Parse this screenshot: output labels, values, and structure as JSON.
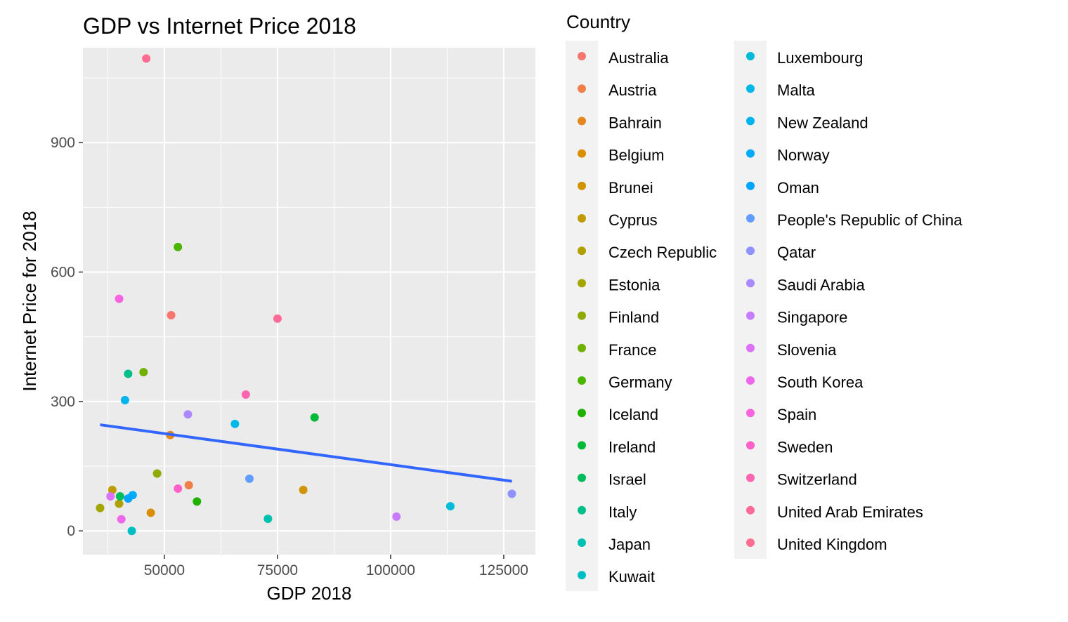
{
  "chart_data": {
    "type": "scatter",
    "title": "GDP vs Internet Price 2018",
    "xlabel": "GDP 2018",
    "ylabel": "Internet Price for 2018",
    "xlim": [
      32000,
      132000
    ],
    "ylim": [
      -55,
      1120
    ],
    "xticks": [
      50000,
      75000,
      100000,
      125000
    ],
    "xtick_labels": [
      "50000",
      "75000",
      "100000",
      "125000"
    ],
    "yticks": [
      0,
      300,
      600,
      900
    ],
    "ytick_labels": [
      "0",
      "300",
      "600",
      "900"
    ],
    "grid": true,
    "background": "#ebebeb",
    "legend_title": "Country",
    "legend_position": "right",
    "points": [
      {
        "country": "Australia",
        "x": 51500,
        "y": 500,
        "color": "#F8766D"
      },
      {
        "country": "Austria",
        "x": 55400,
        "y": 106,
        "color": "#EF7F49"
      },
      {
        "country": "Bahrain",
        "x": 51300,
        "y": 222,
        "color": "#E5861E"
      },
      {
        "country": "Belgium",
        "x": 47000,
        "y": 42,
        "color": "#DB8E00"
      },
      {
        "country": "Brunei",
        "x": 80700,
        "y": 95,
        "color": "#CF9400"
      },
      {
        "country": "Cyprus",
        "x": 38500,
        "y": 95,
        "color": "#C09B00"
      },
      {
        "country": "Czech Republic",
        "x": 40000,
        "y": 63,
        "color": "#B0A000"
      },
      {
        "country": "Estonia",
        "x": 35800,
        "y": 53,
        "color": "#A3A500"
      },
      {
        "country": "Finland",
        "x": 48400,
        "y": 133,
        "color": "#8FAA00"
      },
      {
        "country": "France",
        "x": 45400,
        "y": 368,
        "color": "#72B000"
      },
      {
        "country": "Germany",
        "x": 53000,
        "y": 658,
        "color": "#4BB600"
      },
      {
        "country": "Iceland",
        "x": 57200,
        "y": 68,
        "color": "#1EB100"
      },
      {
        "country": "Ireland",
        "x": 83200,
        "y": 263,
        "color": "#00BA38"
      },
      {
        "country": "Israel",
        "x": 40200,
        "y": 80,
        "color": "#00BC5B"
      },
      {
        "country": "Italy",
        "x": 42000,
        "y": 364,
        "color": "#00BF8B"
      },
      {
        "country": "Japan",
        "x": 72900,
        "y": 28,
        "color": "#00C0AF"
      },
      {
        "country": "Kuwait",
        "x": 42800,
        "y": 0,
        "color": "#00BFC4"
      },
      {
        "country": "Luxembourg",
        "x": 113200,
        "y": 57,
        "color": "#00BCD8"
      },
      {
        "country": "Malta",
        "x": 65600,
        "y": 248,
        "color": "#00B8E7"
      },
      {
        "country": "New Zealand",
        "x": 41300,
        "y": 303,
        "color": "#00B4EF"
      },
      {
        "country": "Norway",
        "x": 43000,
        "y": 83,
        "color": "#00ABF9"
      },
      {
        "country": "Oman",
        "x": 42000,
        "y": 75,
        "color": "#00A5FF"
      },
      {
        "country": "People's Republic of China",
        "x": 68800,
        "y": 121,
        "color": "#619CFF"
      },
      {
        "country": "Qatar",
        "x": 126800,
        "y": 86,
        "color": "#8F91FF"
      },
      {
        "country": "Saudi Arabia",
        "x": 55200,
        "y": 270,
        "color": "#AC88FF"
      },
      {
        "country": "Singapore",
        "x": 101300,
        "y": 33,
        "color": "#C77CFF"
      },
      {
        "country": "Slovenia",
        "x": 38100,
        "y": 80,
        "color": "#DC71FA"
      },
      {
        "country": "South Korea",
        "x": 40500,
        "y": 27,
        "color": "#EE67EB"
      },
      {
        "country": "Spain",
        "x": 40000,
        "y": 538,
        "color": "#F863DF"
      },
      {
        "country": "Sweden",
        "x": 53000,
        "y": 98,
        "color": "#FF61C9"
      },
      {
        "country": "Switzerland",
        "x": 68000,
        "y": 316,
        "color": "#FF64B0"
      },
      {
        "country": "United Arab Emirates",
        "x": 75000,
        "y": 492,
        "color": "#FF6A98"
      },
      {
        "country": "United Kingdom",
        "x": 46000,
        "y": 1095,
        "color": "#FF6C91"
      }
    ],
    "trend_line": {
      "x": [
        35800,
        126800
      ],
      "y": [
        246,
        115
      ],
      "color": "#3366FF"
    }
  }
}
